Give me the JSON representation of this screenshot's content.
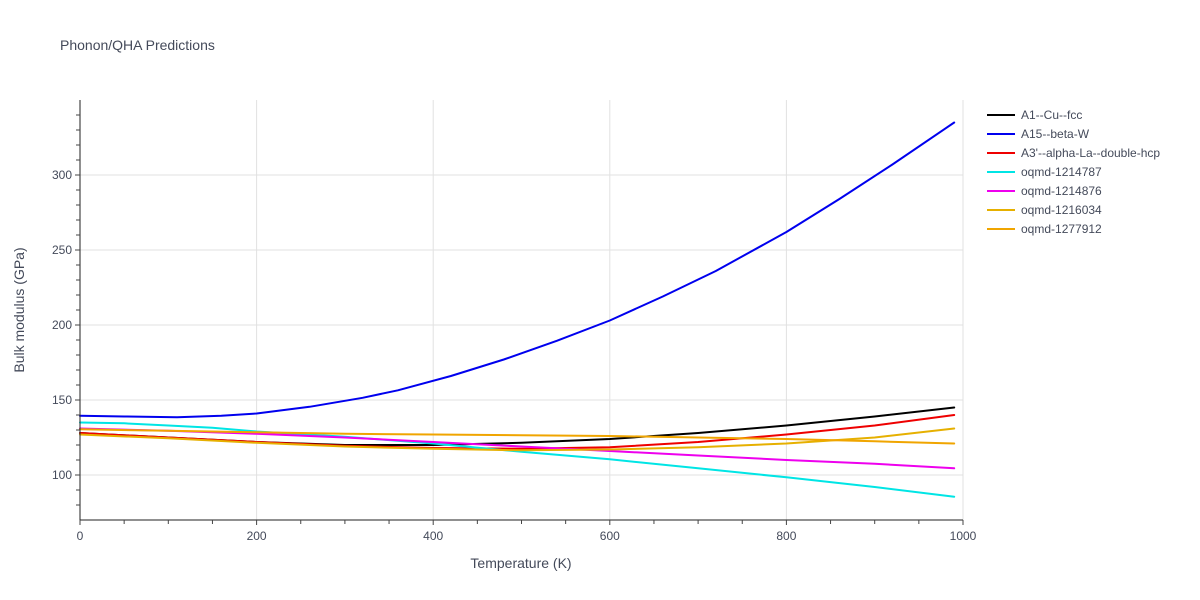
{
  "chart_data": {
    "type": "line",
    "title": "Phonon/QHA Predictions",
    "xlabel": "Temperature (K)",
    "ylabel": "Bulk modulus (GPa)",
    "xlim": [
      0,
      1000
    ],
    "ylim": [
      70,
      350
    ],
    "xticks": [
      0,
      200,
      400,
      600,
      800,
      1000
    ],
    "yticks": [
      100,
      150,
      200,
      250,
      300
    ],
    "grid": true,
    "legend_position": "right",
    "series": [
      {
        "name": "A1--Cu--fcc",
        "color": "#000000",
        "x": [
          0,
          100,
          200,
          300,
          400,
          500,
          600,
          700,
          800,
          900,
          990
        ],
        "y": [
          128,
          125,
          122,
          120,
          120,
          121.5,
          124,
          128,
          133,
          139,
          145
        ]
      },
      {
        "name": "A15--beta-W",
        "color": "#0000ee",
        "x": [
          0,
          50,
          110,
          160,
          200,
          260,
          320,
          360,
          420,
          480,
          540,
          600,
          660,
          720,
          800,
          860,
          920,
          990
        ],
        "y": [
          139.5,
          139,
          138.5,
          139.5,
          141,
          145.5,
          151.5,
          156.5,
          166,
          177,
          189.5,
          203,
          219,
          236,
          262,
          284,
          307,
          335
        ]
      },
      {
        "name": "A3'--alpha-La--double-hcp",
        "color": "#ee0000",
        "x": [
          0,
          100,
          200,
          300,
          400,
          500,
          600,
          700,
          800,
          900,
          990
        ],
        "y": [
          128,
          125,
          122,
          119.5,
          118,
          117.5,
          118.5,
          122,
          127,
          133,
          140
        ]
      },
      {
        "name": "oqmd-1214787",
        "color": "#00e5e5",
        "x": [
          0,
          50,
          100,
          150,
          200,
          300,
          400,
          500,
          600,
          700,
          800,
          900,
          990
        ],
        "y": [
          135,
          134.5,
          133,
          131.5,
          129,
          125.5,
          121,
          115.5,
          110.5,
          104.5,
          98.5,
          92,
          85.5
        ]
      },
      {
        "name": "oqmd-1214876",
        "color": "#ee00ee",
        "x": [
          0,
          100,
          200,
          300,
          400,
          500,
          600,
          700,
          800,
          900,
          990
        ],
        "y": [
          131,
          129.5,
          127.5,
          125,
          122,
          119,
          116,
          113,
          110,
          107.5,
          104.5
        ]
      },
      {
        "name": "oqmd-1216034",
        "color": "#e6b000",
        "x": [
          0,
          100,
          200,
          300,
          400,
          500,
          600,
          700,
          800,
          900,
          990
        ],
        "y": [
          127,
          124.5,
          121.5,
          119,
          117.5,
          116.5,
          117,
          118.5,
          121,
          125,
          131
        ]
      },
      {
        "name": "oqmd-1277912",
        "color": "#f0a500",
        "x": [
          0,
          100,
          200,
          300,
          400,
          500,
          600,
          700,
          800,
          900,
          990
        ],
        "y": [
          130.5,
          129.5,
          128.5,
          127.5,
          127,
          126.5,
          126,
          125,
          124,
          122.5,
          121
        ]
      }
    ]
  }
}
